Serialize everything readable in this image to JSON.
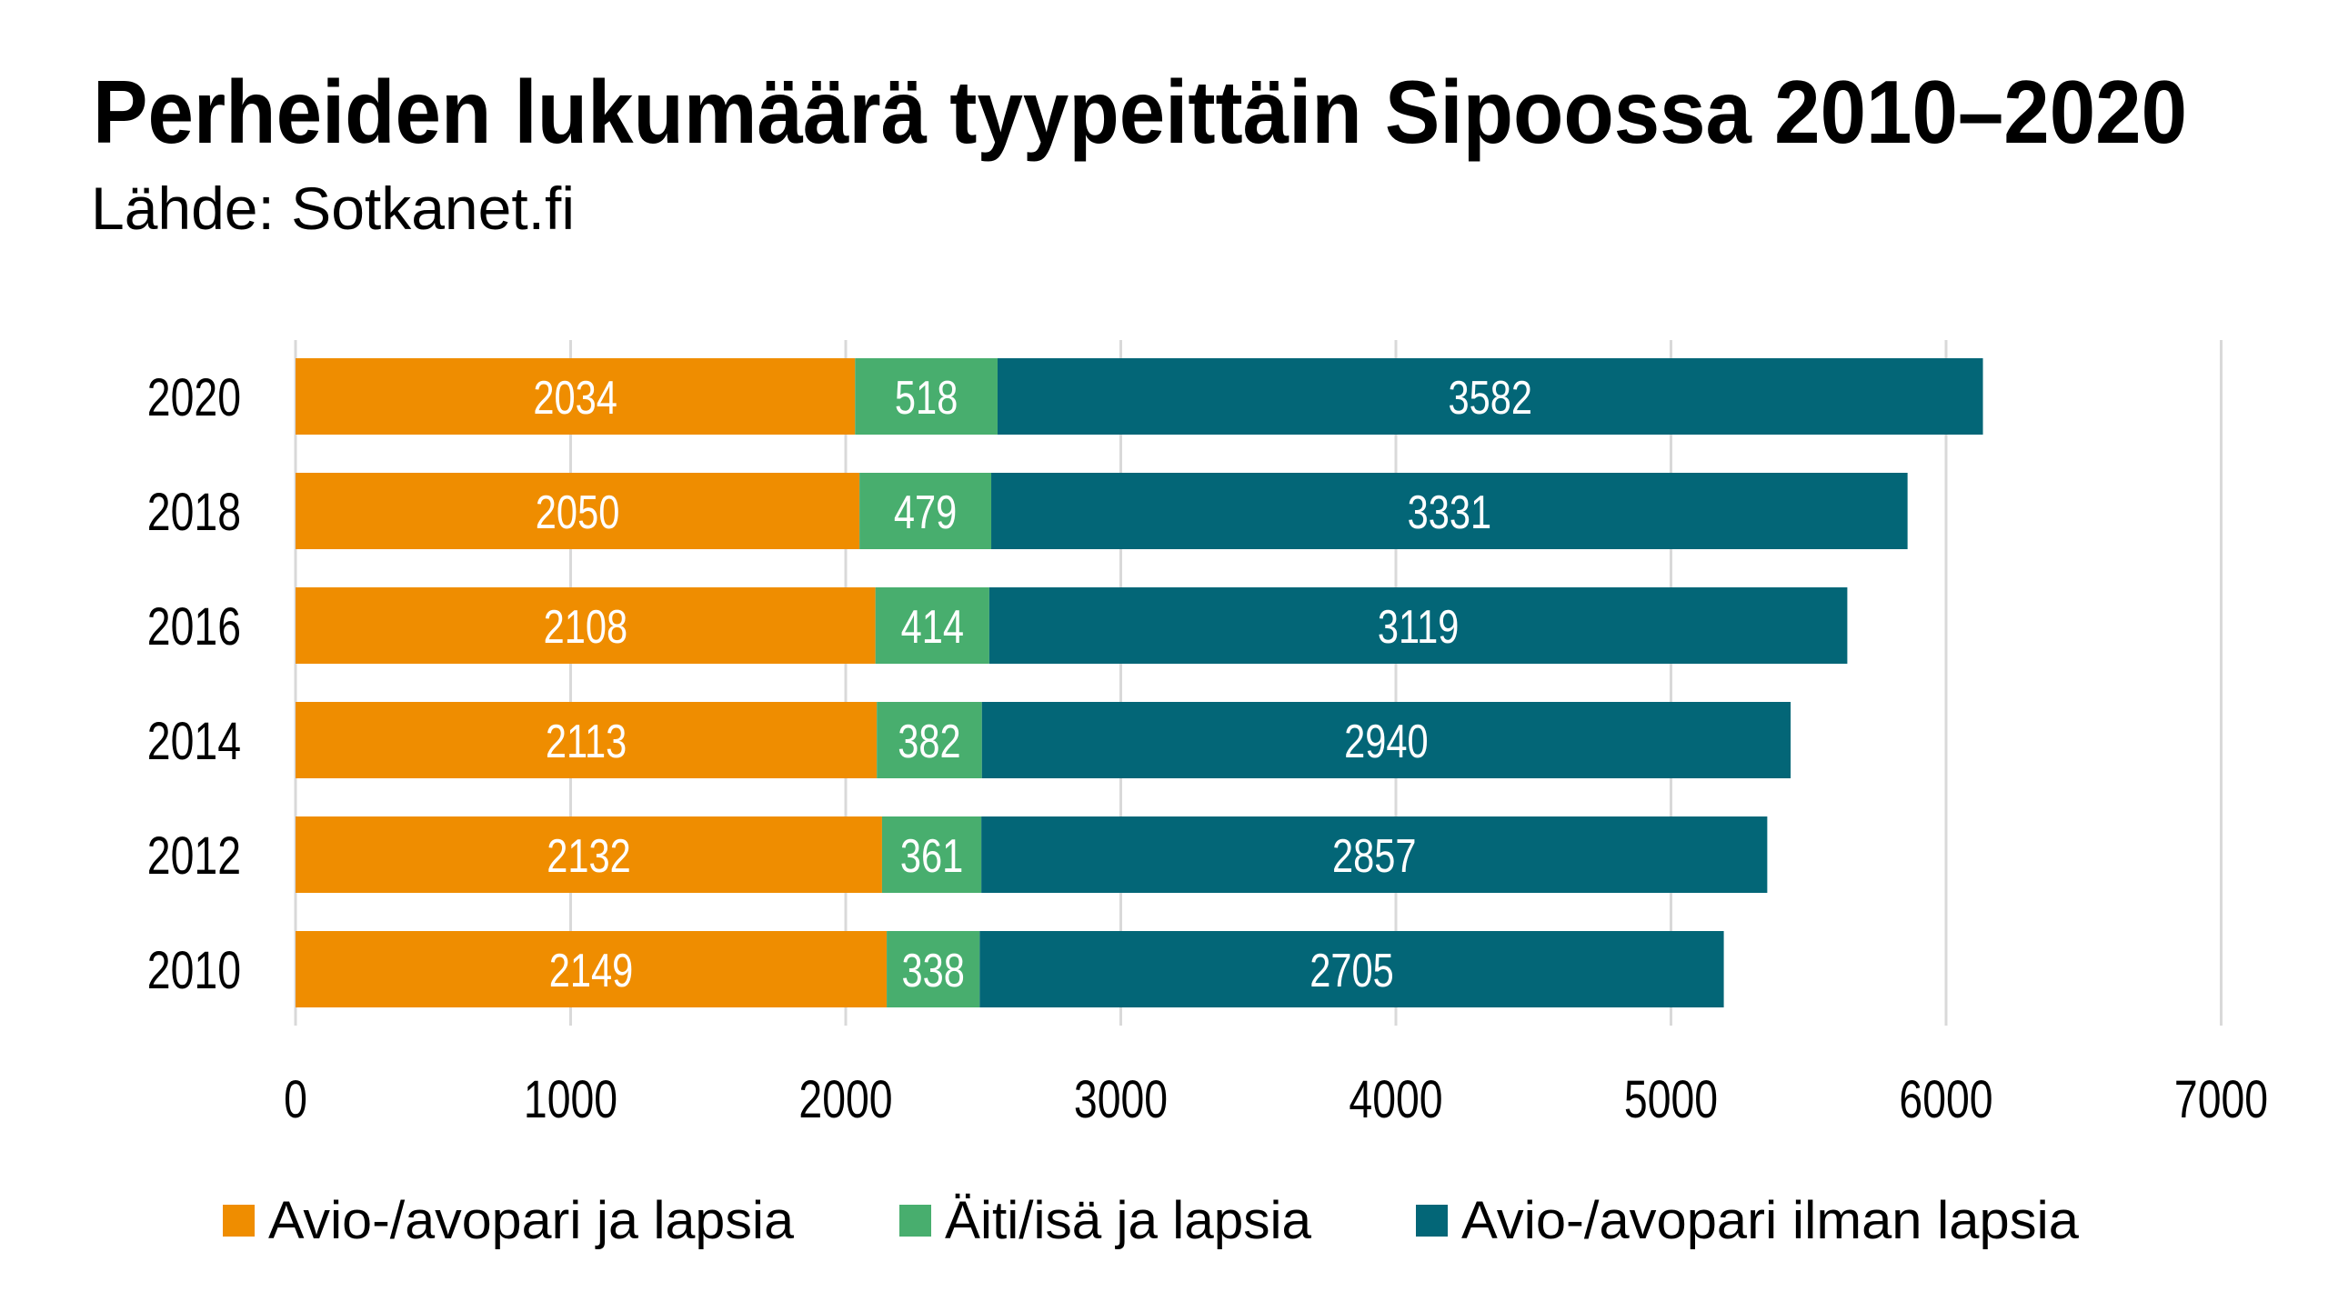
{
  "title": "Perheiden lukumäärä tyypeittäin Sipoossa 2010–2020",
  "subtitle": "Lähde: Sotkanet.fi",
  "colors": {
    "avio_ja_lapsia": "#EF8D00",
    "aiti_isa_ja_lapsia": "#48AE6E",
    "avio_ilman_lapsia": "#036677",
    "gridline": "#D9D9D9",
    "bar_label": "#FFFFFF"
  },
  "chart_data": {
    "type": "bar",
    "orientation": "horizontal",
    "stacked": true,
    "title": "Perheiden lukumäärä tyypeittäin Sipoossa 2010–2020",
    "subtitle": "Lähde: Sotkanet.fi",
    "xlabel": "",
    "ylabel": "",
    "categories": [
      "2020",
      "2018",
      "2016",
      "2014",
      "2012",
      "2010"
    ],
    "series": [
      {
        "name": "Avio-/avopari ja lapsia",
        "color": "#EF8D00",
        "values": [
          2034,
          2050,
          2108,
          2113,
          2132,
          2149
        ]
      },
      {
        "name": "Äiti/isä ja lapsia",
        "color": "#48AE6E",
        "values": [
          518,
          479,
          414,
          382,
          361,
          338
        ]
      },
      {
        "name": "Avio-/avopari ilman lapsia",
        "color": "#036677",
        "values": [
          3582,
          3331,
          3119,
          2940,
          2857,
          2705
        ]
      }
    ],
    "xlim": [
      0,
      7000
    ],
    "xticks": [
      0,
      1000,
      2000,
      3000,
      4000,
      5000,
      6000,
      7000
    ],
    "xtick_labels": [
      "0",
      "1000",
      "2000",
      "3000",
      "4000",
      "5000",
      "6000",
      "7000"
    ],
    "grid": "vertical",
    "data_labels": true,
    "legend_position": "bottom"
  },
  "legend": [
    {
      "label": "Avio-/avopari ja lapsia",
      "color": "#EF8D00"
    },
    {
      "label": "Äiti/isä ja lapsia",
      "color": "#48AE6E"
    },
    {
      "label": "Avio-/avopari ilman lapsia",
      "color": "#036677"
    }
  ]
}
